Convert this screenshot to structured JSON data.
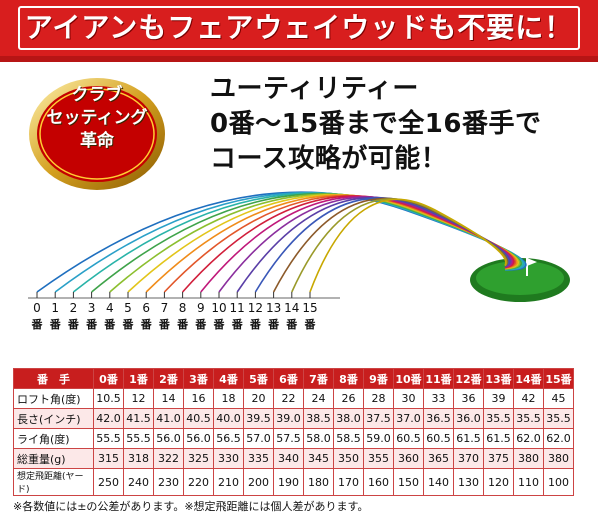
{
  "banner": {
    "text": "アイアンもフェアウェイウッドも不要に！"
  },
  "badge": {
    "line1": "クラブ",
    "line2": "セッティング",
    "line3": "革命"
  },
  "headline": {
    "line1": "ユーティリティー",
    "line2": "0番〜15番まで全16番手で",
    "line3": "コース攻略が可能！"
  },
  "diagram": {
    "numbers": [
      "0",
      "1",
      "2",
      "3",
      "4",
      "5",
      "6",
      "7",
      "8",
      "9",
      "10",
      "11",
      "12",
      "13",
      "14",
      "15"
    ],
    "ban": "番",
    "colors": [
      "#1f6fbf",
      "#2aa0c8",
      "#29b3a8",
      "#3fa34a",
      "#8cbf2f",
      "#e2c51a",
      "#f08c1a",
      "#e2572a",
      "#d11f3b",
      "#c0187a",
      "#8b2f9e",
      "#5a3fa7",
      "#3a58b8",
      "#8c5a2a",
      "#9a9a2a",
      "#c8a800"
    ]
  },
  "table": {
    "header": {
      "label": "番　手",
      "clubs": [
        "0番",
        "1番",
        "2番",
        "3番",
        "4番",
        "5番",
        "6番",
        "7番",
        "8番",
        "9番",
        "10番",
        "11番",
        "12番",
        "13番",
        "14番",
        "15番"
      ]
    },
    "rows": [
      {
        "label": "ロフト角(度)",
        "values": [
          "10.5",
          "12",
          "14",
          "16",
          "18",
          "20",
          "22",
          "24",
          "26",
          "28",
          "30",
          "33",
          "36",
          "39",
          "42",
          "45"
        ]
      },
      {
        "label": "長さ(インチ)",
        "values": [
          "42.0",
          "41.5",
          "41.0",
          "40.5",
          "40.0",
          "39.5",
          "39.0",
          "38.5",
          "38.0",
          "37.5",
          "37.0",
          "36.5",
          "36.0",
          "35.5",
          "35.5",
          "35.5"
        ]
      },
      {
        "label": "ライ角(度)",
        "values": [
          "55.5",
          "55.5",
          "56.0",
          "56.0",
          "56.5",
          "57.0",
          "57.5",
          "58.0",
          "58.5",
          "59.0",
          "60.5",
          "60.5",
          "61.5",
          "61.5",
          "62.0",
          "62.0"
        ]
      },
      {
        "label": "総重量(g)",
        "values": [
          "315",
          "318",
          "322",
          "325",
          "330",
          "335",
          "340",
          "345",
          "350",
          "355",
          "360",
          "365",
          "370",
          "375",
          "380",
          "380"
        ]
      },
      {
        "label": "想定飛距離(ヤード)",
        "values": [
          "250",
          "240",
          "230",
          "220",
          "210",
          "200",
          "190",
          "180",
          "170",
          "160",
          "150",
          "140",
          "130",
          "120",
          "110",
          "100"
        ]
      }
    ]
  },
  "note": "※各数値には±の公差があります。※想定飛距離には個人差があります。"
}
